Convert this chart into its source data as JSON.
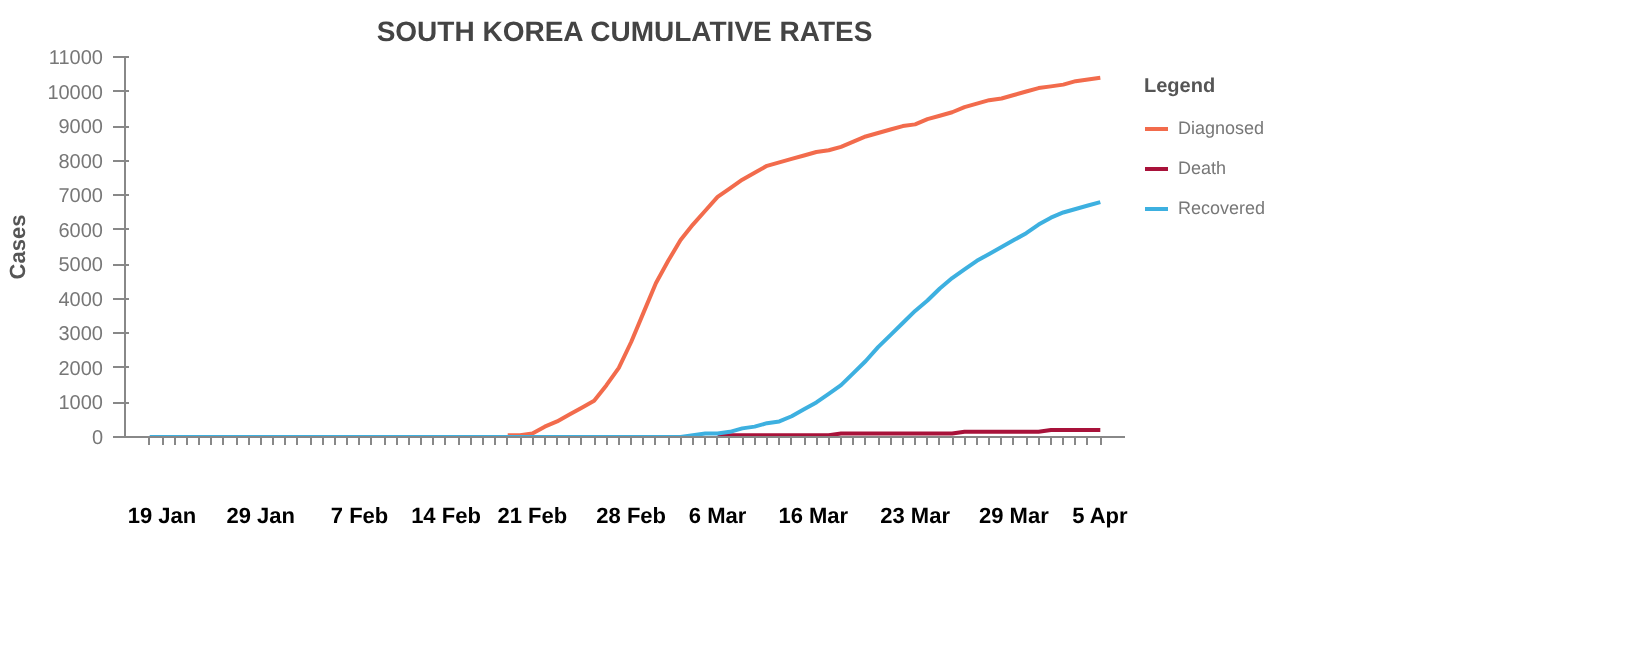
{
  "chart_data": {
    "type": "line",
    "title": "SOUTH KOREA CUMULATIVE RATES",
    "ylabel": "Cases",
    "legend_title": "Legend",
    "legend": "top right",
    "grid": false,
    "categories": [
      null,
      "19 Jan",
      null,
      null,
      null,
      null,
      null,
      null,
      null,
      "29 Jan",
      null,
      null,
      null,
      null,
      null,
      null,
      null,
      "7 Feb",
      null,
      null,
      null,
      null,
      null,
      null,
      "14 Feb",
      null,
      null,
      null,
      null,
      null,
      null,
      "21 Feb",
      null,
      null,
      null,
      null,
      null,
      null,
      null,
      "28 Feb",
      null,
      null,
      null,
      null,
      null,
      null,
      "6 Mar",
      null,
      null,
      null,
      null,
      null,
      null,
      null,
      "16  Mar",
      null,
      null,
      null,
      null,
      null,
      null,
      null,
      "23 Mar",
      null,
      null,
      null,
      null,
      null,
      null,
      null,
      "29 Mar",
      null,
      null,
      null,
      null,
      null,
      null,
      "5 Apr"
    ],
    "ylim": [
      0,
      11000
    ],
    "yticks": [
      0,
      1000,
      2000,
      3000,
      4000,
      5000,
      6000,
      7000,
      8000,
      9000,
      10000,
      11000
    ],
    "series": [
      {
        "name": "Diagnosed",
        "color": "#f26b4c",
        "values": [
          null,
          null,
          null,
          null,
          null,
          null,
          null,
          null,
          null,
          null,
          null,
          null,
          null,
          null,
          null,
          null,
          null,
          null,
          null,
          null,
          null,
          null,
          null,
          null,
          null,
          null,
          null,
          null,
          null,
          50,
          50,
          100,
          300,
          450,
          650,
          850,
          1050,
          1500,
          2000,
          2750,
          3600,
          4450,
          5100,
          5700,
          6150,
          6550,
          6950,
          7200,
          7450,
          7650,
          7850,
          7950,
          8050,
          8150,
          8250,
          8300,
          8400,
          8550,
          8700,
          8800,
          8900,
          9000,
          9050,
          9200,
          9300,
          9400,
          9550,
          9650,
          9750,
          9800,
          9900,
          10000,
          10100,
          10150,
          10200,
          10300,
          10350,
          10400
        ]
      },
      {
        "name": "Death",
        "color": "#a8123a",
        "values": [
          null,
          null,
          null,
          null,
          null,
          null,
          null,
          null,
          null,
          null,
          null,
          null,
          null,
          null,
          null,
          null,
          null,
          null,
          null,
          null,
          null,
          null,
          null,
          null,
          null,
          null,
          null,
          null,
          null,
          null,
          null,
          null,
          null,
          null,
          null,
          null,
          null,
          null,
          null,
          null,
          null,
          null,
          null,
          null,
          null,
          null,
          50,
          50,
          50,
          50,
          50,
          50,
          50,
          50,
          50,
          50,
          100,
          100,
          100,
          100,
          100,
          100,
          100,
          100,
          100,
          100,
          150,
          150,
          150,
          150,
          150,
          150,
          150,
          200,
          200,
          200,
          200,
          200
        ]
      },
      {
        "name": "Recovered",
        "color": "#3db0e0",
        "values": [
          0,
          0,
          0,
          0,
          0,
          0,
          0,
          0,
          0,
          0,
          0,
          0,
          0,
          0,
          0,
          0,
          0,
          0,
          0,
          0,
          0,
          0,
          0,
          0,
          0,
          0,
          0,
          0,
          0,
          0,
          0,
          0,
          0,
          0,
          0,
          0,
          0,
          0,
          0,
          0,
          0,
          0,
          0,
          0,
          50,
          100,
          100,
          150,
          250,
          300,
          400,
          450,
          600,
          800,
          1000,
          1250,
          1500,
          1850,
          2200,
          2600,
          2950,
          3300,
          3650,
          3950,
          4300,
          4600,
          4850,
          5100,
          5300,
          5500,
          5700,
          5900,
          6150,
          6350,
          6500,
          6600,
          6700,
          6800
        ]
      }
    ]
  }
}
